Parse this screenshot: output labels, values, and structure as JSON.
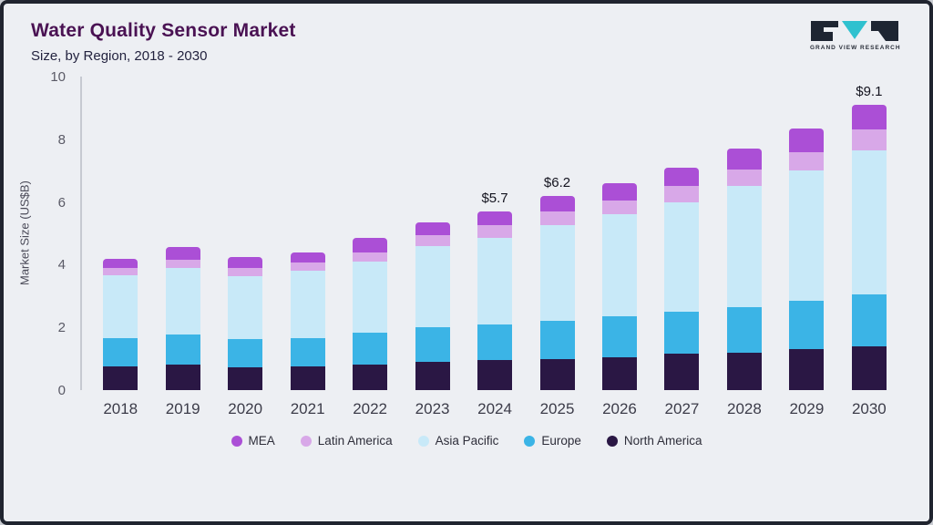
{
  "header": {
    "title": "Water Quality Sensor Market",
    "subtitle": "Size, by Region, 2018 - 2030",
    "logo_text": "GRAND VIEW RESEARCH"
  },
  "colors": {
    "title": "#4a1253",
    "border": "#20242f",
    "background": "#edeff3",
    "logo_teal": "#2fc1cf",
    "logo_dark": "#1e2532"
  },
  "chart_data": {
    "type": "bar",
    "stacked": true,
    "title": "Water Quality Sensor Market",
    "subtitle": "Size, by Region, 2018 - 2030",
    "xlabel": "",
    "ylabel": "Market Size (US$B)",
    "ylim": [
      0,
      10
    ],
    "yticks": [
      0,
      2,
      4,
      6,
      8,
      10
    ],
    "grid": false,
    "legend_position": "bottom",
    "categories": [
      "2018",
      "2019",
      "2020",
      "2021",
      "2022",
      "2023",
      "2024",
      "2025",
      "2026",
      "2027",
      "2028",
      "2029",
      "2030"
    ],
    "series": [
      {
        "name": "North America",
        "color": "#2a1744",
        "values": [
          0.75,
          0.82,
          0.72,
          0.75,
          0.82,
          0.9,
          0.95,
          1.0,
          1.05,
          1.15,
          1.2,
          1.3,
          1.4
        ]
      },
      {
        "name": "Europe",
        "color": "#3bb4e6",
        "values": [
          0.9,
          0.95,
          0.9,
          0.9,
          1.0,
          1.1,
          1.15,
          1.2,
          1.3,
          1.35,
          1.45,
          1.55,
          1.65
        ]
      },
      {
        "name": "Asia Pacific",
        "color": "#c8e9f8",
        "values": [
          2.0,
          2.13,
          2.0,
          2.15,
          2.28,
          2.6,
          2.75,
          3.05,
          3.25,
          3.5,
          3.85,
          4.15,
          4.6
        ]
      },
      {
        "name": "Latin America",
        "color": "#d8a8e8",
        "values": [
          0.25,
          0.27,
          0.28,
          0.28,
          0.3,
          0.35,
          0.4,
          0.45,
          0.45,
          0.5,
          0.55,
          0.6,
          0.65
        ]
      },
      {
        "name": "MEA",
        "color": "#ab4fd6",
        "values": [
          0.3,
          0.38,
          0.35,
          0.32,
          0.45,
          0.4,
          0.45,
          0.5,
          0.55,
          0.6,
          0.65,
          0.75,
          0.8
        ]
      }
    ],
    "totals": [
      4.2,
      4.55,
      4.25,
      4.4,
      4.85,
      5.35,
      5.7,
      6.2,
      6.6,
      7.1,
      7.7,
      8.35,
      9.1
    ],
    "annotations": [
      {
        "category": "2024",
        "text": "$5.7"
      },
      {
        "category": "2025",
        "text": "$6.2"
      },
      {
        "category": "2030",
        "text": "$9.1"
      }
    ],
    "legend_order": [
      "MEA",
      "Latin America",
      "Asia Pacific",
      "Europe",
      "North America"
    ]
  }
}
